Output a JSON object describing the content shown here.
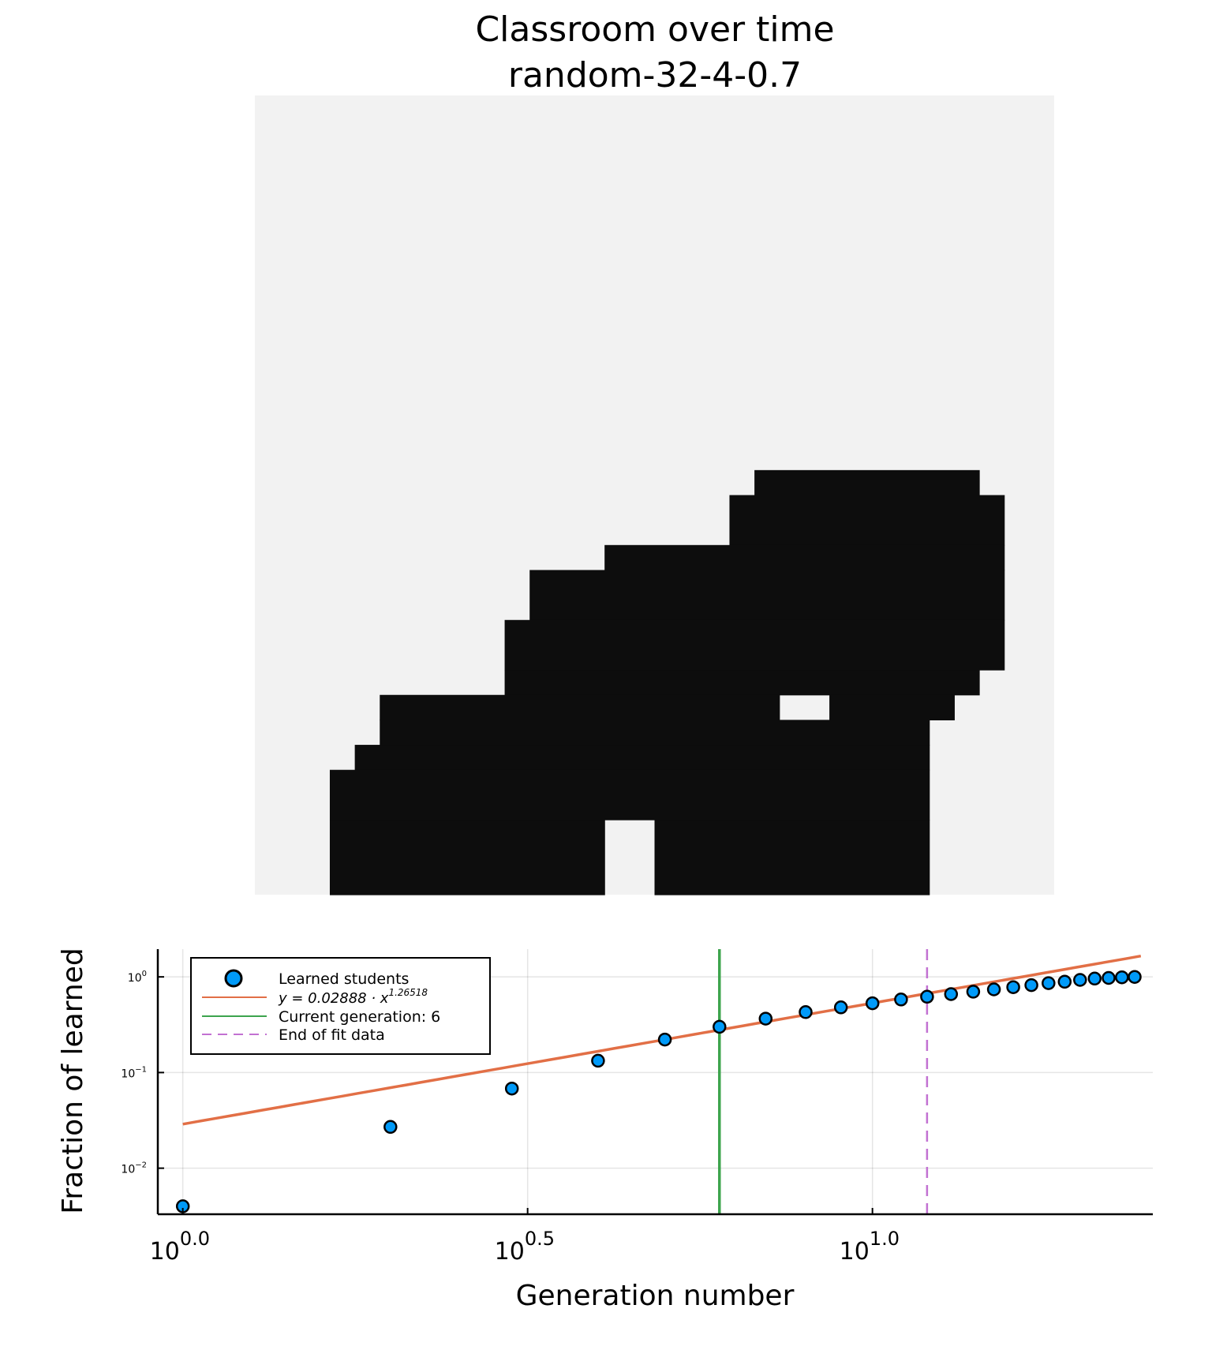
{
  "title_line1": "Classroom over time",
  "title_line2": "random-32-4-0.7",
  "chart_data": [
    {
      "type": "heatmap",
      "description_grid": "32x32 binary classroom grid; 1 = learned (black), 0 = not learned (light gray)",
      "grid_size": [
        32,
        32
      ],
      "filled_rectangles_rows_cols": [
        {
          "rows": [
            15,
            15
          ],
          "cols": [
            20,
            28
          ]
        },
        {
          "rows": [
            16,
            17
          ],
          "cols": [
            19,
            29
          ]
        },
        {
          "rows": [
            18,
            18
          ],
          "cols": [
            14,
            29
          ]
        },
        {
          "rows": [
            19,
            20
          ],
          "cols": [
            11,
            29
          ]
        },
        {
          "rows": [
            21,
            22
          ],
          "cols": [
            10,
            29
          ]
        },
        {
          "rows": [
            23,
            23
          ],
          "cols": [
            10,
            28
          ]
        },
        {
          "rows": [
            24,
            24
          ],
          "cols": [
            5,
            20
          ]
        },
        {
          "rows": [
            24,
            24
          ],
          "cols": [
            23,
            27
          ]
        },
        {
          "rows": [
            25,
            25
          ],
          "cols": [
            5,
            26
          ]
        },
        {
          "rows": [
            26,
            26
          ],
          "cols": [
            4,
            26
          ]
        },
        {
          "rows": [
            27,
            28
          ],
          "cols": [
            3,
            26
          ]
        },
        {
          "rows": [
            29,
            31
          ],
          "cols": [
            3,
            13
          ]
        },
        {
          "rows": [
            29,
            31
          ],
          "cols": [
            16,
            26
          ]
        }
      ],
      "colors": {
        "learned": "#0d0d0d",
        "not_learned": "#f2f2f2"
      }
    },
    {
      "type": "scatter",
      "x_scale": "log10",
      "y_scale": "log10",
      "xlabel": "Generation number",
      "ylabel": "Fraction of learned",
      "xlim": [
        0.92,
        25.5
      ],
      "ylim": [
        0.0033,
        1.95
      ],
      "x_ticks": [
        {
          "value": 1,
          "base": "10",
          "exp": "0.0"
        },
        {
          "value": 3.1623,
          "base": "10",
          "exp": "0.5"
        },
        {
          "value": 10,
          "base": "10",
          "exp": "1.0"
        }
      ],
      "y_ticks": [
        {
          "value": 0.01,
          "base": "10",
          "exp": "−2"
        },
        {
          "value": 0.1,
          "base": "10",
          "exp": "−1"
        },
        {
          "value": 1,
          "base": "10",
          "exp": "0"
        }
      ],
      "grid": true,
      "legend_placement": "top-left",
      "series": [
        {
          "name": "Learned students",
          "kind": "scatter",
          "color": "#009af9",
          "x": [
            1,
            2,
            3,
            4,
            5,
            6,
            7,
            8,
            9,
            10,
            11,
            12,
            13,
            14,
            15,
            16,
            17,
            18,
            19,
            20,
            21,
            22,
            23,
            24
          ],
          "y": [
            0.004,
            0.027,
            0.068,
            0.133,
            0.221,
            0.301,
            0.366,
            0.428,
            0.48,
            0.53,
            0.58,
            0.62,
            0.66,
            0.7,
            0.74,
            0.78,
            0.82,
            0.86,
            0.89,
            0.93,
            0.96,
            0.975,
            0.99,
            1.0
          ]
        },
        {
          "name": "$y = 0.02888 \\cdot x^{1.26518}$",
          "kind": "fit_line",
          "color": "#e26f46",
          "coefficient": 0.02888,
          "exponent": 1.26518,
          "x_range": [
            1,
            24.5
          ]
        },
        {
          "name": "Current generation: 6",
          "kind": "vline",
          "color": "#3da44d",
          "x": 6
        },
        {
          "name": "End of fit data",
          "kind": "vline_dashed",
          "color": "#c271d2",
          "x": 12
        }
      ],
      "legend_labels": {
        "scatter": "Learned students",
        "fit_prefix": "y = 0.02888 · x",
        "fit_exp": "1.26518",
        "current": "Current generation: 6",
        "end_fit": "End of fit data"
      }
    }
  ]
}
